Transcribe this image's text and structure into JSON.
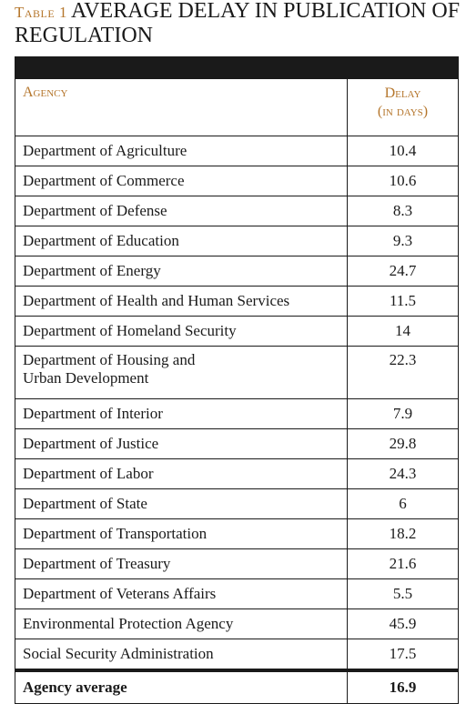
{
  "title": {
    "label": "Table 1",
    "text": "AVERAGE DELAY IN PUBLICATION OF REGULATION"
  },
  "columns": {
    "agency": "Agency",
    "delay_line1": "Delay",
    "delay_line2": "(in days)"
  },
  "rows": [
    {
      "agency": "Department of Agriculture",
      "delay": "10.4"
    },
    {
      "agency": "Department of Commerce",
      "delay": "10.6"
    },
    {
      "agency": "Department of Defense",
      "delay": "8.3"
    },
    {
      "agency": "Department of Education",
      "delay": "9.3"
    },
    {
      "agency": "Department of Energy",
      "delay": "24.7"
    },
    {
      "agency": "Department of Health and Human Services",
      "delay": "11.5"
    },
    {
      "agency": "Department of Homeland Security",
      "delay": "14"
    },
    {
      "agency_line1": "Department of Housing and",
      "agency_line2": "Urban Development",
      "delay": "22.3"
    },
    {
      "agency": "Department of Interior",
      "delay": "7.9"
    },
    {
      "agency": "Department of Justice",
      "delay": "29.8"
    },
    {
      "agency": "Department of Labor",
      "delay": "24.3"
    },
    {
      "agency": "Department of State",
      "delay": "6"
    },
    {
      "agency": "Department of Transportation",
      "delay": "18.2"
    },
    {
      "agency": "Department of Treasury",
      "delay": "21.6"
    },
    {
      "agency": "Department of Veterans Affairs",
      "delay": "5.5"
    },
    {
      "agency": "Environmental Protection Agency",
      "delay": "45.9"
    },
    {
      "agency": "Social Security Administration",
      "delay": "17.5"
    }
  ],
  "average": {
    "label": "Agency average",
    "delay": "16.9"
  },
  "colors": {
    "accent": "#b5762c",
    "text": "#1a1a1a"
  }
}
